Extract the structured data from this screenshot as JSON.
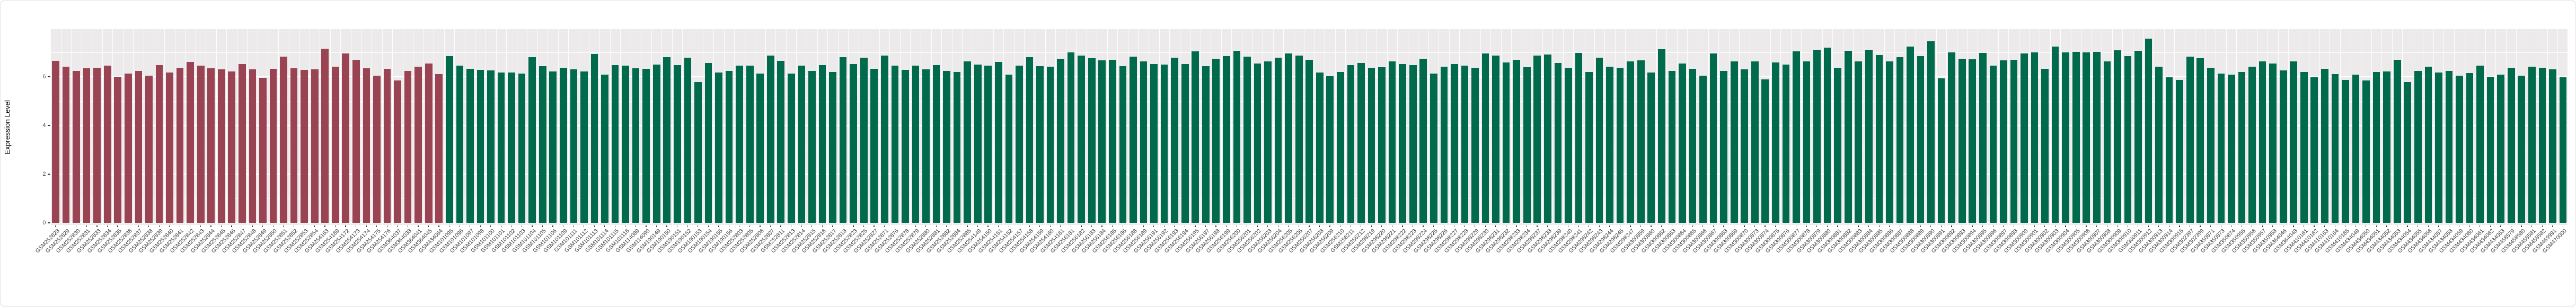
{
  "axis": {
    "ylabel": "Expression Level",
    "ytick_labels": [
      "0",
      "2",
      "4",
      "6"
    ]
  },
  "style": {
    "panel_bg": "#ECEAEA",
    "grid_color": "#FFFFFF",
    "group1_color": "#9A4352",
    "group2_color": "#006B4C",
    "tick_color": "#333333",
    "axis_text_color": "#404040"
  },
  "chart_data": {
    "type": "bar",
    "title": "",
    "xlabel": "",
    "ylabel": "Expression Level",
    "ylim": [
      0,
      7.96
    ],
    "yticks": [
      0,
      2,
      4,
      6
    ],
    "grid": true,
    "legend": "none",
    "group_split_index": 38,
    "group_colors": [
      "#9A4352",
      "#006B4C"
    ],
    "categories": [
      "GSM252828",
      "GSM252829",
      "GSM252830",
      "GSM252831",
      "GSM252833",
      "GSM252834",
      "GSM252835",
      "GSM252836",
      "GSM252837",
      "GSM252838",
      "GSM252839",
      "GSM252840",
      "GSM252841",
      "GSM252842",
      "GSM252843",
      "GSM252844",
      "GSM252845",
      "GSM252846",
      "GSM252847",
      "GSM252848",
      "GSM252849",
      "GSM252850",
      "GSM252851",
      "GSM252852",
      "GSM252853",
      "GSM252854",
      "GSM254163",
      "GSM254169",
      "GSM254172",
      "GSM254173",
      "GSM254174",
      "GSM254175",
      "GSM254176",
      "GSM364037",
      "GSM364038",
      "GSM364041",
      "GSM364045",
      "GSM434064",
      "GSM101095",
      "GSM101096",
      "GSM101097",
      "GSM101098",
      "GSM101100",
      "GSM101101",
      "GSM101102",
      "GSM101103",
      "GSM101104",
      "GSM101105",
      "GSM101106",
      "GSM101109",
      "GSM101111",
      "GSM101112",
      "GSM101113",
      "GSM101114",
      "GSM101115",
      "GSM101116",
      "GSM114089",
      "GSM114090",
      "GSM190149",
      "GSM190150",
      "GSM190151",
      "GSM190152",
      "GSM190153",
      "GSM190154",
      "GSM190155",
      "GSM190156",
      "GSM252803",
      "GSM252805",
      "GSM252806",
      "GSM252807",
      "GSM252811",
      "GSM252813",
      "GSM252814",
      "GSM252815",
      "GSM252816",
      "GSM252817",
      "GSM252818",
      "GSM252823",
      "GSM252825",
      "GSM252827",
      "GSM252871",
      "GSM252876",
      "GSM252878",
      "GSM252879",
      "GSM252880",
      "GSM252881",
      "GSM252882",
      "GSM252884",
      "GSM252885",
      "GSM254149",
      "GSM254150",
      "GSM254151",
      "GSM254152",
      "GSM254157",
      "GSM254158",
      "GSM254159",
      "GSM254160",
      "GSM254161",
      "GSM256181",
      "GSM256182",
      "GSM256183",
      "GSM256184",
      "GSM256185",
      "GSM256186",
      "GSM256188",
      "GSM256189",
      "GSM256191",
      "GSM256192",
      "GSM256193",
      "GSM256194",
      "GSM256195",
      "GSM256197",
      "GSM256198",
      "GSM256199",
      "GSM256200",
      "GSM256201",
      "GSM256202",
      "GSM256203",
      "GSM256204",
      "GSM256205",
      "GSM256206",
      "GSM256207",
      "GSM256208",
      "GSM256209",
      "GSM256210",
      "GSM256211",
      "GSM256212",
      "GSM298219",
      "GSM298220",
      "GSM298221",
      "GSM298222",
      "GSM298223",
      "GSM298224",
      "GSM298225",
      "GSM298226",
      "GSM298227",
      "GSM298228",
      "GSM298229",
      "GSM298230",
      "GSM298231",
      "GSM298232",
      "GSM298233",
      "GSM298234",
      "GSM298237",
      "GSM298238",
      "GSM298239",
      "GSM298240",
      "GSM298241",
      "GSM298242",
      "GSM298243",
      "GSM298244",
      "GSM298245",
      "GSM298247",
      "GSM300859",
      "GSM300860",
      "GSM300862",
      "GSM300863",
      "GSM300864",
      "GSM300865",
      "GSM300866",
      "GSM300867",
      "GSM300868",
      "GSM300869",
      "GSM300870",
      "GSM300873",
      "GSM300874",
      "GSM300875",
      "GSM300876",
      "GSM300877",
      "GSM300878",
      "GSM300879",
      "GSM300880",
      "GSM300881",
      "GSM300882",
      "GSM300883",
      "GSM300884",
      "GSM300885",
      "GSM300886",
      "GSM300887",
      "GSM300888",
      "GSM300889",
      "GSM300890",
      "GSM300891",
      "GSM300892",
      "GSM300893",
      "GSM300894",
      "GSM300895",
      "GSM300896",
      "GSM300897",
      "GSM300898",
      "GSM300900",
      "GSM300901",
      "GSM300902",
      "GSM300903",
      "GSM300904",
      "GSM300905",
      "GSM300906",
      "GSM300907",
      "GSM300908",
      "GSM300909",
      "GSM300910",
      "GSM300911",
      "GSM300912",
      "GSM300913",
      "GSM300914",
      "GSM300915",
      "GSM302397",
      "GSM302399",
      "GSM350871",
      "GSM350873",
      "GSM350874",
      "GSM350955",
      "GSM350956",
      "GSM350957",
      "GSM350958",
      "GSM364046",
      "GSM364048",
      "GSM410161",
      "GSM410162",
      "GSM410163",
      "GSM410164",
      "GSM410165",
      "GSM434049",
      "GSM434050",
      "GSM434051",
      "GSM434052",
      "GSM434053",
      "GSM434054",
      "GSM434055",
      "GSM434056",
      "GSM434057",
      "GSM434058",
      "GSM434059",
      "GSM434060",
      "GSM434061",
      "GSM434062",
      "GSM434063",
      "GSM458579",
      "GSM458580",
      "GSM458581",
      "GSM458582",
      "GSM469991",
      "GSM470000"
    ],
    "values": [
      6.65,
      6.42,
      6.25,
      6.35,
      6.38,
      6.45,
      6.0,
      6.12,
      6.25,
      6.05,
      6.48,
      6.18,
      6.38,
      6.6,
      6.45,
      6.35,
      6.3,
      6.22,
      6.52,
      6.3,
      5.95,
      6.32,
      6.83,
      6.35,
      6.28,
      6.3,
      7.16,
      6.42,
      6.96,
      6.7,
      6.35,
      6.05,
      6.33,
      5.85,
      6.25,
      6.42,
      6.55,
      6.1,
      6.85,
      6.45,
      6.33,
      6.29,
      6.27,
      6.18,
      6.17,
      6.12,
      6.8,
      6.43,
      6.22,
      6.38,
      6.3,
      6.22,
      6.94,
      6.09,
      6.47,
      6.45,
      6.34,
      6.33,
      6.49,
      6.8,
      6.47,
      6.78,
      5.78,
      6.57,
      6.18,
      6.25,
      6.45,
      6.45,
      6.14,
      6.88,
      6.65,
      6.13,
      6.45,
      6.23,
      6.47,
      6.2,
      6.8,
      6.52,
      6.78,
      6.33,
      6.88,
      6.46,
      6.28,
      6.45,
      6.3,
      6.47,
      6.24,
      6.2,
      6.62,
      6.51,
      6.45,
      6.6,
      6.09,
      6.45,
      6.8,
      6.43,
      6.41,
      6.75,
      7.0,
      6.87,
      6.76,
      6.67,
      6.7,
      6.43,
      6.82,
      6.62,
      6.52,
      6.51,
      6.78,
      6.52,
      7.04,
      6.43,
      6.75,
      6.85,
      7.07,
      6.82,
      6.54,
      6.63,
      6.78,
      6.96,
      6.87,
      6.7,
      6.18,
      6.02,
      6.2,
      6.47,
      6.56,
      6.38,
      6.4,
      6.62,
      6.52,
      6.47,
      6.74,
      6.14,
      6.41,
      6.53,
      6.45,
      6.36,
      6.96,
      6.87,
      6.59,
      6.7,
      6.4,
      6.88,
      6.91,
      6.56,
      6.36,
      6.98,
      6.2,
      6.78,
      6.41,
      6.38,
      6.63,
      6.67,
      6.18,
      7.14,
      6.23,
      6.54,
      6.33,
      6.04,
      6.96,
      6.24,
      6.62,
      6.3,
      6.62,
      5.89,
      6.58,
      6.49,
      7.04,
      6.62,
      7.11,
      7.2,
      6.36,
      7.07,
      6.64,
      7.11,
      6.89,
      6.63,
      6.8,
      7.25,
      6.85,
      7.46,
      5.94,
      6.99,
      6.75,
      6.72,
      6.98,
      6.46,
      6.67,
      6.7,
      6.96,
      7.0,
      6.33,
      7.23,
      6.99,
      7.03,
      7.01,
      7.03,
      6.62,
      7.09,
      6.85,
      7.07,
      7.56,
      6.41,
      5.98,
      5.87,
      6.83,
      6.76,
      6.38,
      6.14,
      6.09,
      6.2,
      6.41,
      6.64,
      6.54,
      6.27,
      6.62,
      6.2,
      5.98,
      6.33,
      6.1,
      5.87,
      6.08,
      5.85,
      6.2,
      6.22,
      6.7,
      5.78,
      6.25,
      6.41,
      6.18,
      6.23,
      6.05,
      6.16,
      6.45,
      6.01,
      6.08,
      6.38,
      6.05,
      6.41,
      6.38,
      6.31,
      5.98
    ]
  }
}
